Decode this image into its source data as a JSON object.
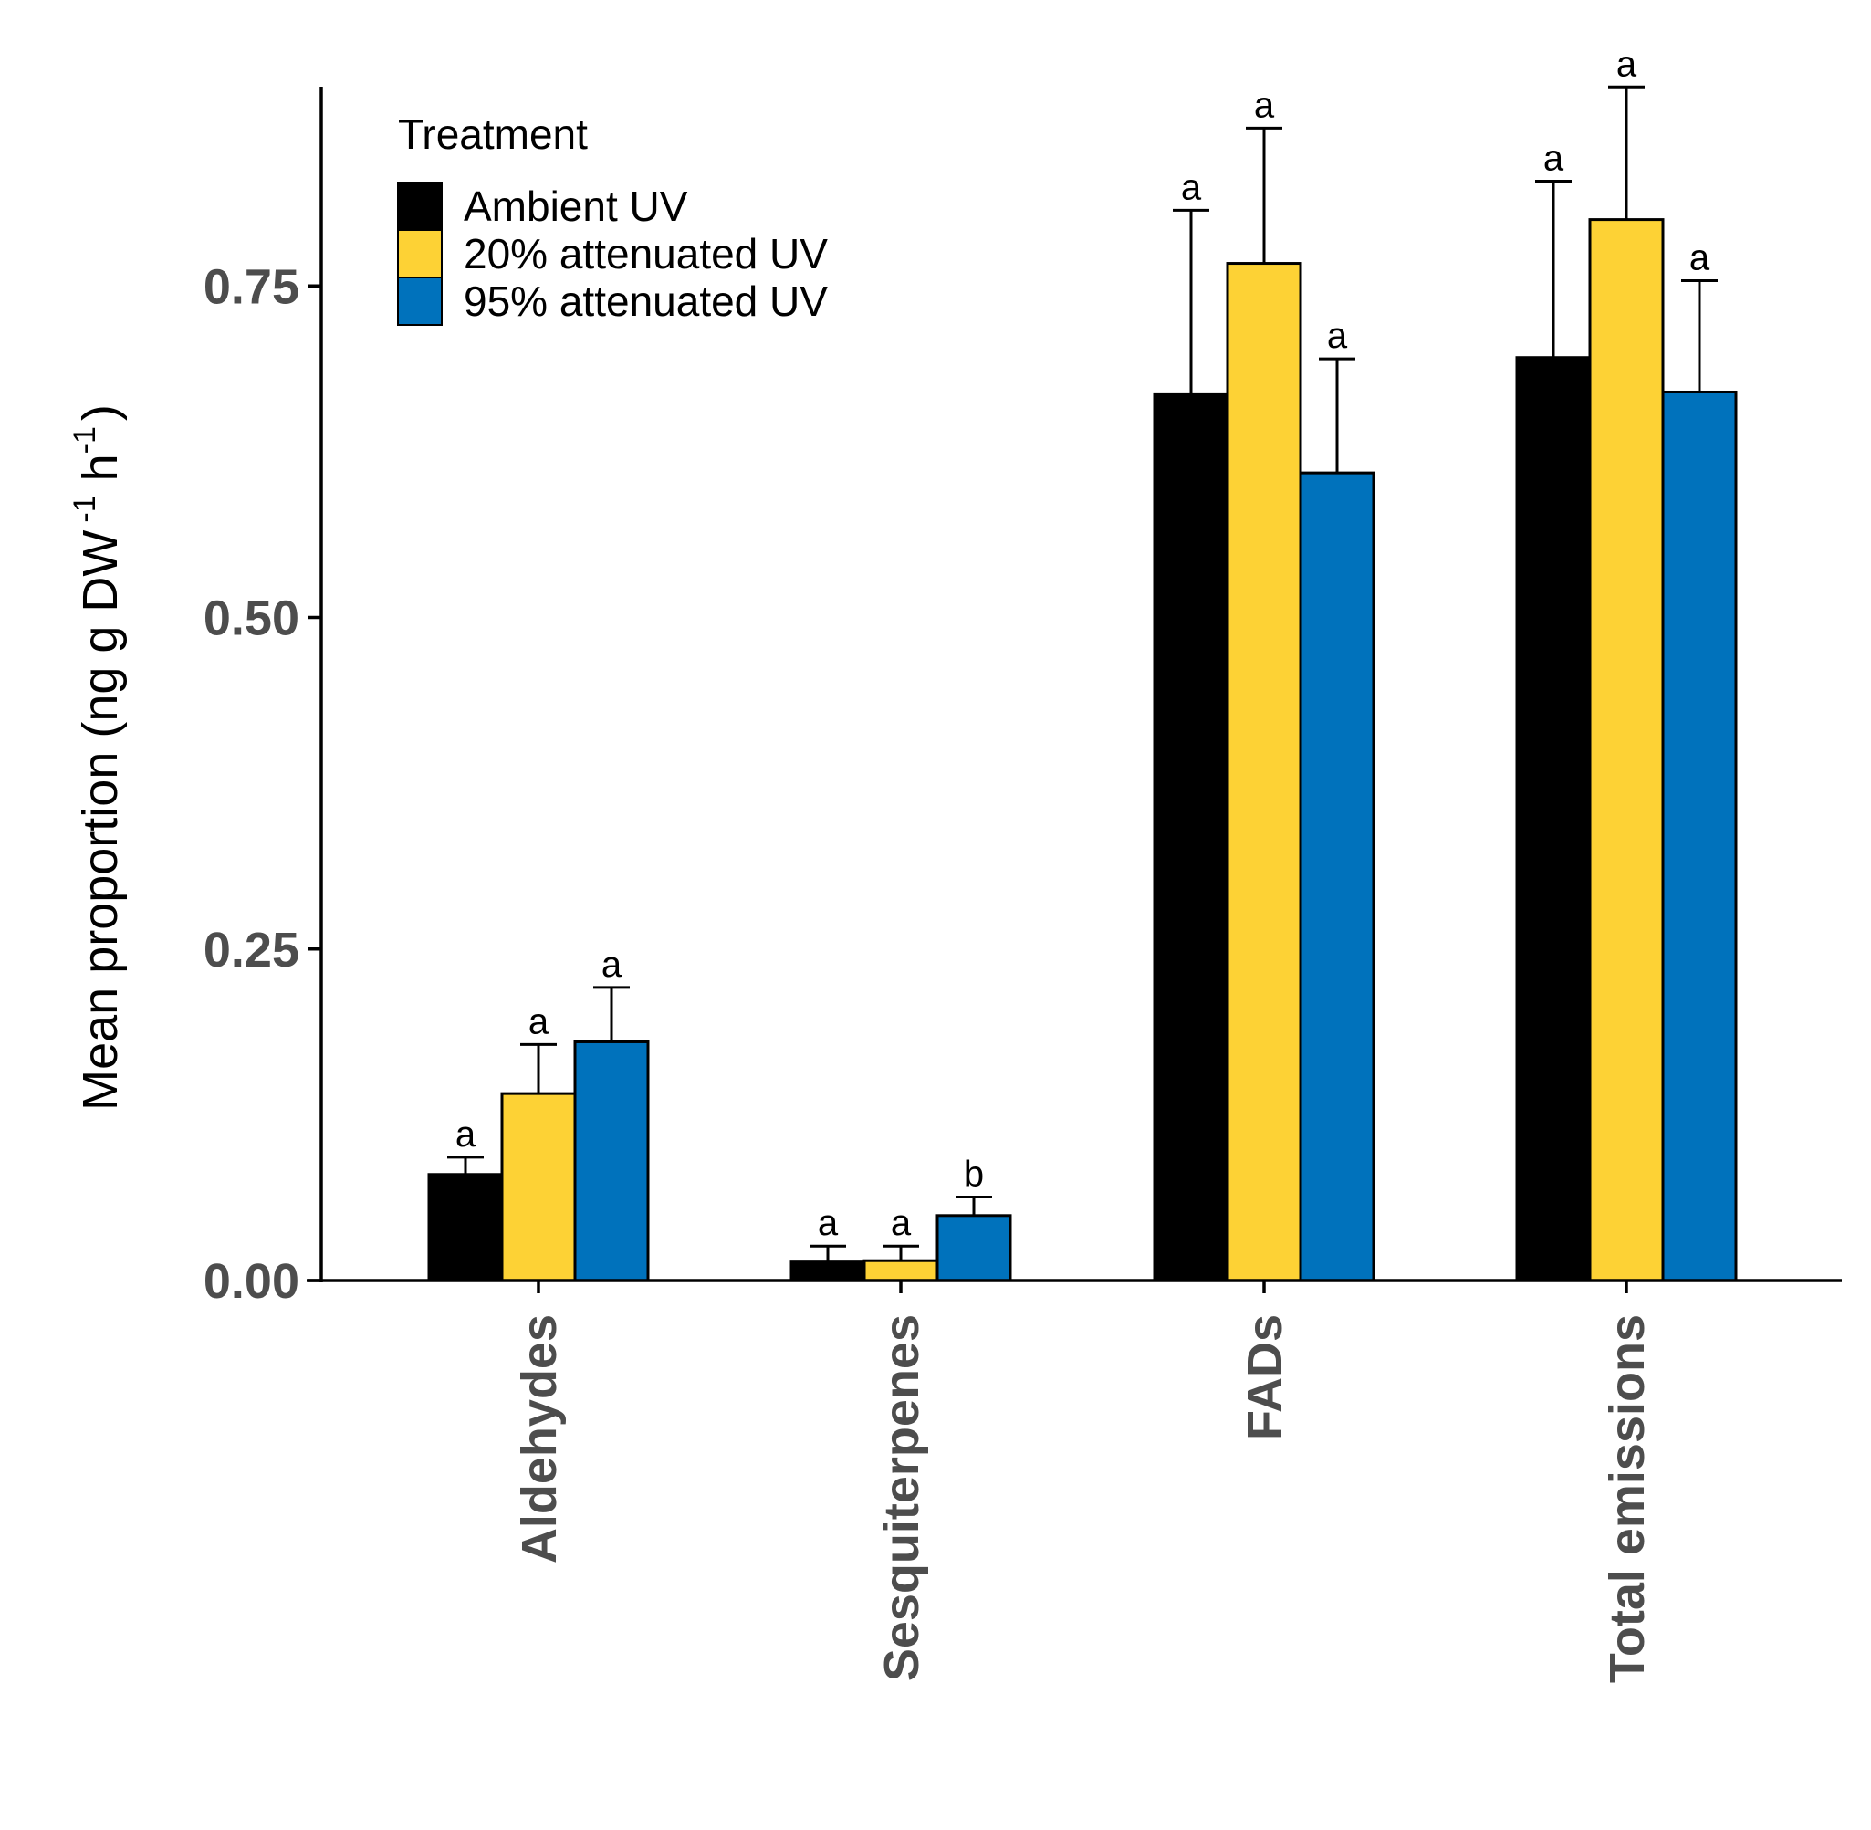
{
  "chart_data": {
    "type": "bar",
    "title": "",
    "xlabel": "",
    "ylabel_parts": {
      "main": "Mean proportion (ng g DW",
      "sup1": "-1",
      "h": " h",
      "sup2": "-1",
      "close": ")"
    },
    "ylim": [
      0,
      0.9
    ],
    "yticks": [
      0.0,
      0.25,
      0.5,
      0.75
    ],
    "ytick_labels": [
      "0.00",
      "0.25",
      "0.50",
      "0.75"
    ],
    "categories": [
      "Aldehydes",
      "Sesquiterpenes",
      "FADs",
      "Total emissions"
    ],
    "legend": {
      "title": "Treatment",
      "position": "top-left"
    },
    "series": [
      {
        "name": "Ambient UV",
        "color": "#000000",
        "values": [
          0.08,
          0.014,
          0.668,
          0.696
        ],
        "errors": [
          0.013,
          0.012,
          0.139,
          0.133
        ],
        "sig": [
          "a",
          "a",
          "a",
          "a"
        ]
      },
      {
        "name": "20% attenuated UV",
        "color": "#FDD235",
        "values": [
          0.141,
          0.015,
          0.767,
          0.8
        ],
        "errors": [
          0.037,
          0.011,
          0.102,
          0.1
        ],
        "sig": [
          "a",
          "a",
          "a",
          "a"
        ]
      },
      {
        "name": "95% attenuated UV",
        "color": "#0072BC",
        "values": [
          0.18,
          0.049,
          0.609,
          0.67
        ],
        "errors": [
          0.041,
          0.014,
          0.086,
          0.084
        ],
        "sig": [
          "a",
          "b",
          "a",
          "a"
        ]
      }
    ]
  }
}
